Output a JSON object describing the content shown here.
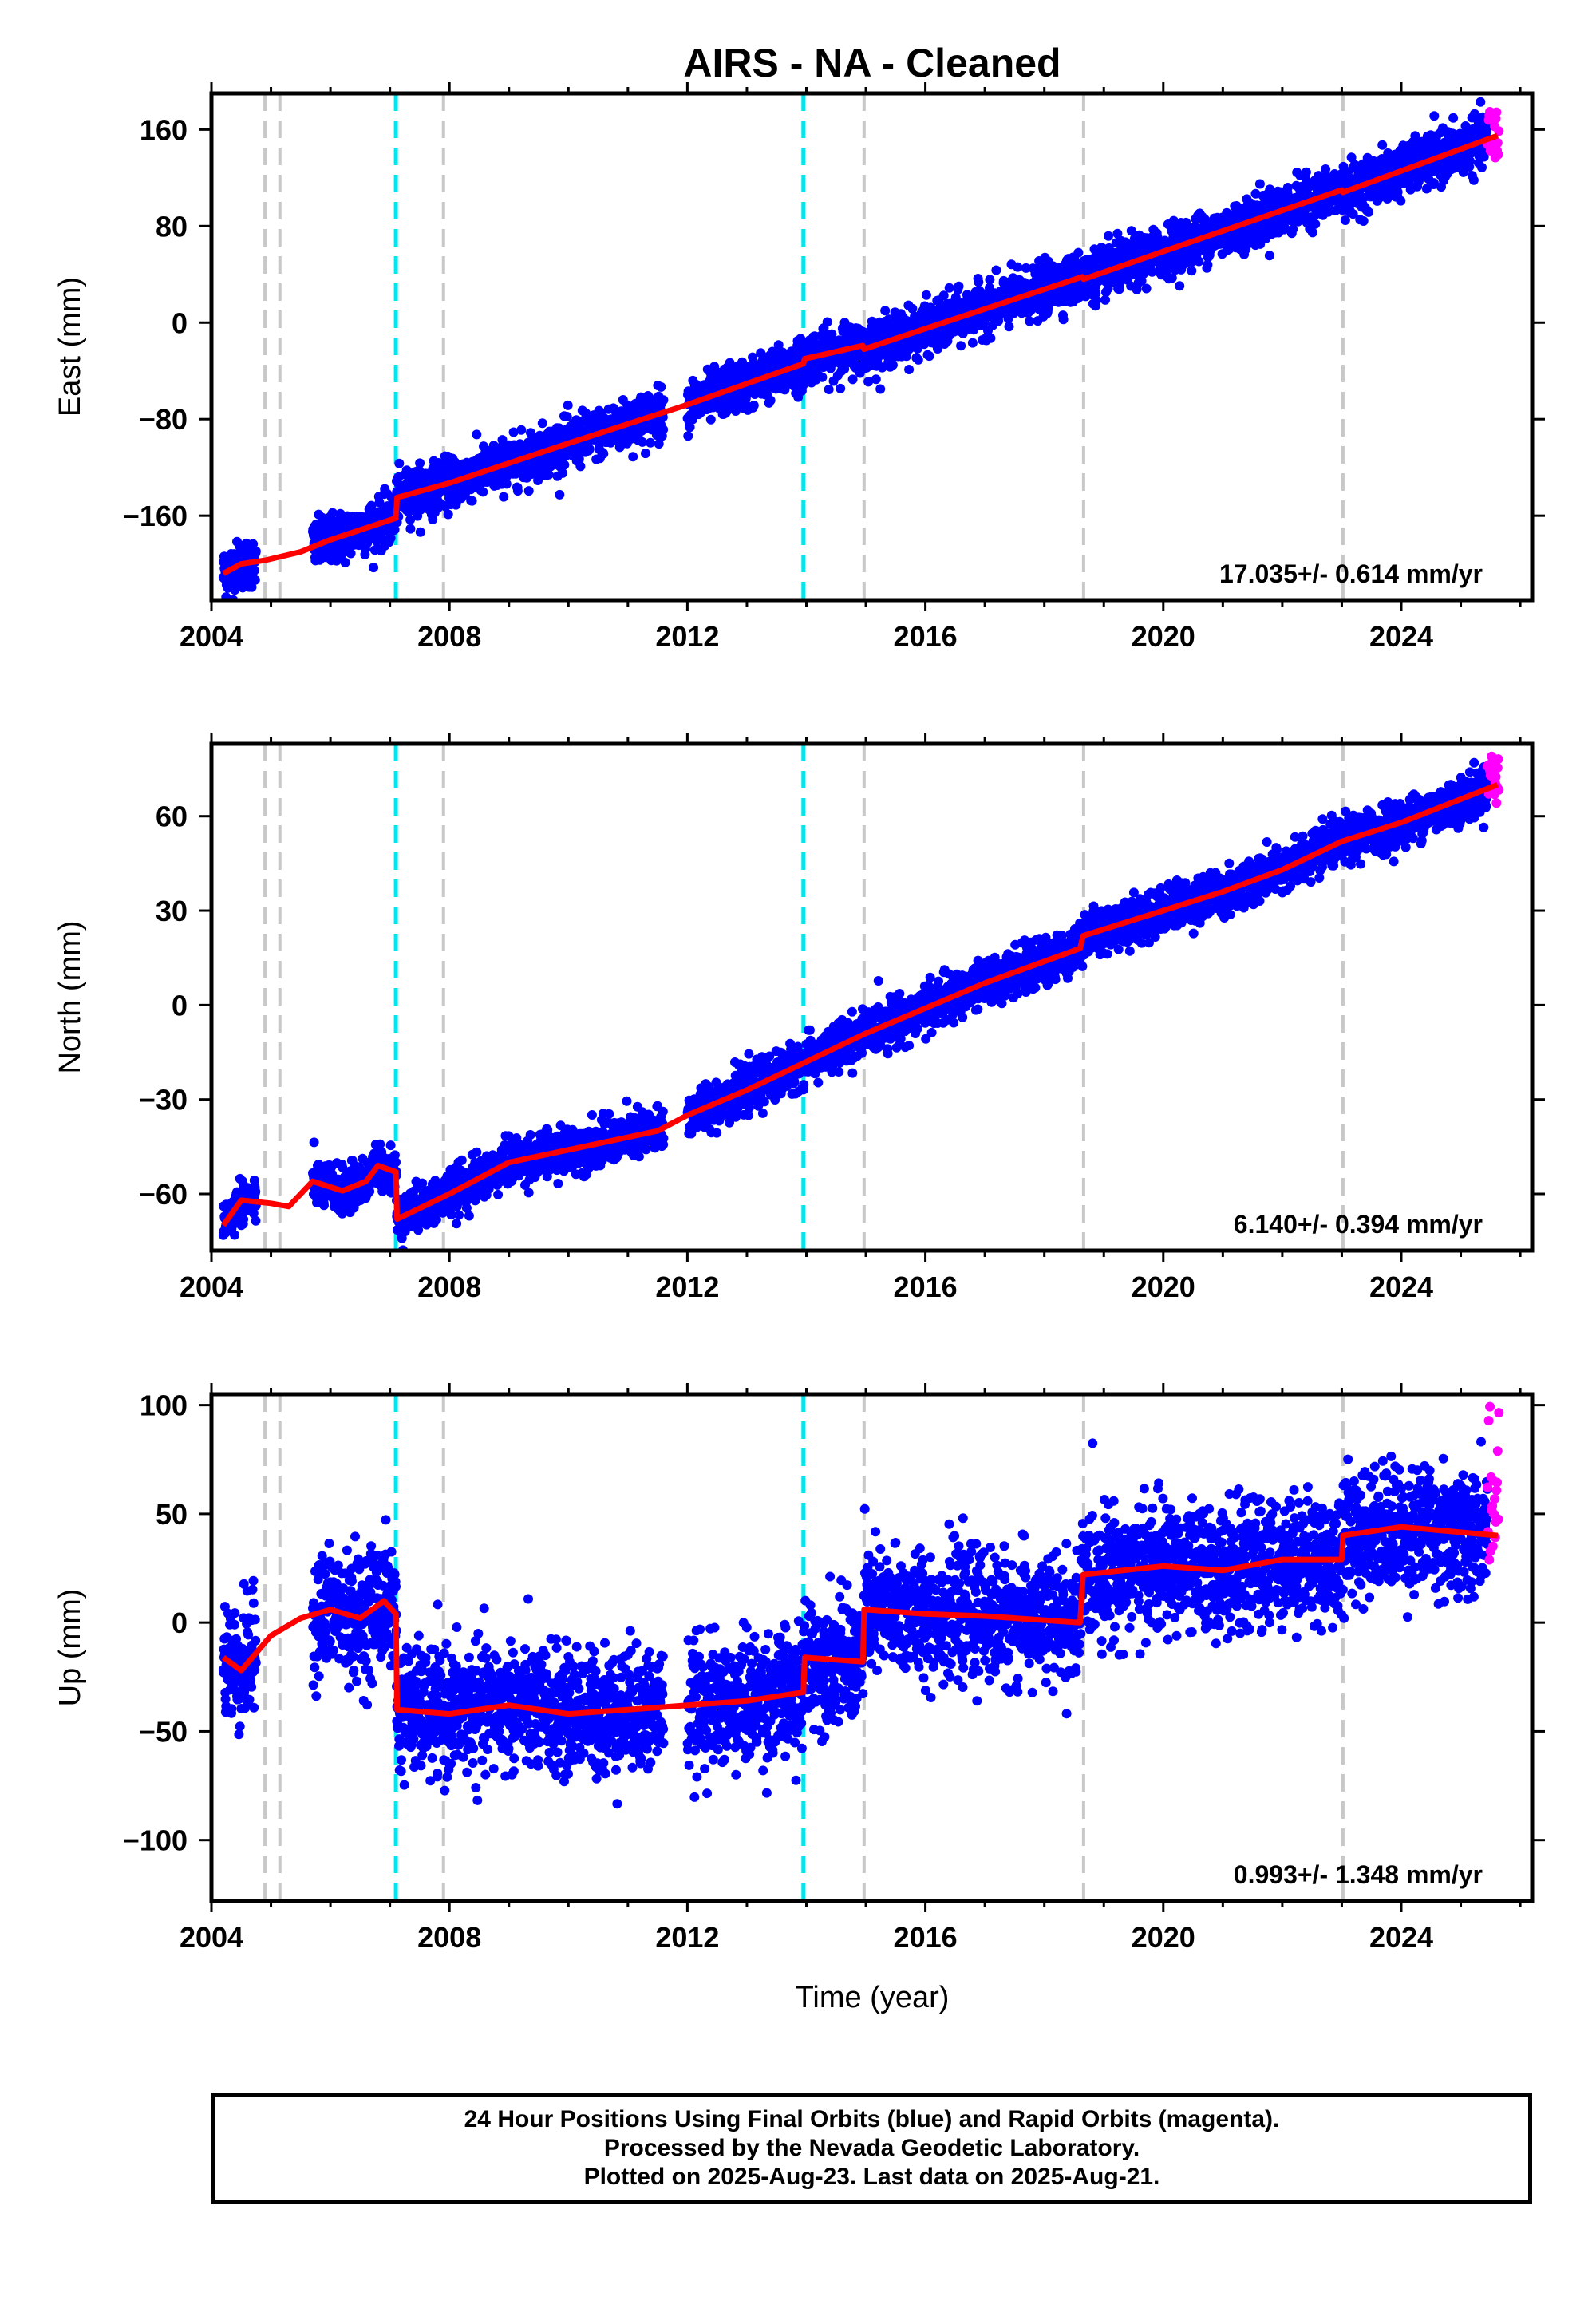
{
  "figure": {
    "title": "AIRS  - NA - Cleaned",
    "xlabel": "Time (year)"
  },
  "colors": {
    "final_orbits": "#0000ff",
    "rapid_orbits": "#ff00ff",
    "model": "#ff0000",
    "equipment_change": "#c8c8c8",
    "earthquake": "#00e5ee"
  },
  "chart_data": [
    {
      "type": "scatter",
      "component": "East",
      "ylabel": "East (mm)",
      "xlim": [
        2004.0,
        2026.2
      ],
      "ylim": [
        -230,
        190
      ],
      "xticks": [
        2004,
        2008,
        2012,
        2016,
        2020,
        2024
      ],
      "yticks": [
        -160,
        -80,
        0,
        80,
        160
      ],
      "ytick_labels": [
        "−160",
        "−80",
        "0",
        "80",
        "160"
      ],
      "rate_label": "17.035+/- 0.614 mm/yr",
      "model_points": [
        [
          2004.2,
          -208
        ],
        [
          2004.5,
          -200
        ],
        [
          2004.9,
          -197
        ],
        [
          2005.5,
          -190
        ],
        [
          2006.0,
          -180
        ],
        [
          2007.1,
          -162
        ],
        [
          2007.12,
          -145
        ],
        [
          2008.0,
          -133
        ],
        [
          2010.0,
          -100
        ],
        [
          2012.0,
          -68
        ],
        [
          2013.95,
          -34
        ],
        [
          2013.97,
          -30
        ],
        [
          2014.95,
          -19
        ],
        [
          2014.97,
          -22
        ],
        [
          2016.0,
          -5
        ],
        [
          2018.64,
          38
        ],
        [
          2018.66,
          36
        ],
        [
          2020.0,
          59
        ],
        [
          2023.0,
          110
        ],
        [
          2023.02,
          108
        ],
        [
          2025.62,
          155
        ]
      ],
      "final_scatter_sigma": 10,
      "rapid_range": [
        2025.45,
        2025.64
      ],
      "rapid_values": [
        136,
        176
      ]
    },
    {
      "type": "scatter",
      "component": "North",
      "ylabel": "North (mm)",
      "xlim": [
        2004.0,
        2026.2
      ],
      "ylim": [
        -78,
        83
      ],
      "xticks": [
        2004,
        2008,
        2012,
        2016,
        2020,
        2024
      ],
      "yticks": [
        -60,
        -30,
        0,
        30,
        60
      ],
      "ytick_labels": [
        "−60",
        "−30",
        "0",
        "30",
        "60"
      ],
      "rate_label": "6.140+/- 0.394 mm/yr",
      "model_points": [
        [
          2004.2,
          -70
        ],
        [
          2004.5,
          -62
        ],
        [
          2005.0,
          -63
        ],
        [
          2005.3,
          -64
        ],
        [
          2005.7,
          -56
        ],
        [
          2006.2,
          -59
        ],
        [
          2006.6,
          -56
        ],
        [
          2006.8,
          -51
        ],
        [
          2007.1,
          -53
        ],
        [
          2007.12,
          -68
        ],
        [
          2008.0,
          -60
        ],
        [
          2009.0,
          -50
        ],
        [
          2010.0,
          -46
        ],
        [
          2010.5,
          -44
        ],
        [
          2011.0,
          -42
        ],
        [
          2011.5,
          -40
        ],
        [
          2012.0,
          -35
        ],
        [
          2013.0,
          -27
        ],
        [
          2014.0,
          -18
        ],
        [
          2015.0,
          -9
        ],
        [
          2016.0,
          -1
        ],
        [
          2017.0,
          7
        ],
        [
          2018.6,
          18
        ],
        [
          2018.65,
          22
        ],
        [
          2020.0,
          30
        ],
        [
          2021.0,
          36
        ],
        [
          2022.0,
          43
        ],
        [
          2023.0,
          52
        ],
        [
          2024.0,
          58
        ],
        [
          2025.62,
          70
        ]
      ],
      "final_scatter_sigma": 3.5,
      "rapid_range": [
        2025.45,
        2025.64
      ],
      "rapid_values": [
        64,
        79
      ]
    },
    {
      "type": "scatter",
      "component": "Up",
      "ylabel": "Up (mm)",
      "xlim": [
        2004.0,
        2026.2
      ],
      "ylim": [
        -128,
        105
      ],
      "xticks": [
        2004,
        2008,
        2012,
        2016,
        2020,
        2024
      ],
      "yticks": [
        -100,
        -50,
        0,
        50,
        100
      ],
      "ytick_labels": [
        "−100",
        "−50",
        "0",
        "50",
        "100"
      ],
      "rate_label": "0.993+/- 1.348 mm/yr",
      "model_points": [
        [
          2004.2,
          -16
        ],
        [
          2004.5,
          -22
        ],
        [
          2005.0,
          -6
        ],
        [
          2005.5,
          2
        ],
        [
          2006.0,
          6
        ],
        [
          2006.5,
          2
        ],
        [
          2006.9,
          10
        ],
        [
          2007.1,
          4
        ],
        [
          2007.12,
          -40
        ],
        [
          2008.0,
          -42
        ],
        [
          2009.0,
          -38
        ],
        [
          2010.0,
          -42
        ],
        [
          2011.0,
          -40
        ],
        [
          2012.0,
          -38
        ],
        [
          2013.0,
          -36
        ],
        [
          2013.95,
          -32
        ],
        [
          2013.97,
          -16
        ],
        [
          2014.95,
          -18
        ],
        [
          2014.97,
          6
        ],
        [
          2016.0,
          4
        ],
        [
          2017.0,
          3
        ],
        [
          2018.6,
          0
        ],
        [
          2018.65,
          22
        ],
        [
          2020.0,
          26
        ],
        [
          2021.0,
          24
        ],
        [
          2022.0,
          29
        ],
        [
          2023.0,
          29
        ],
        [
          2023.02,
          40
        ],
        [
          2024.0,
          44
        ],
        [
          2025.62,
          40
        ]
      ],
      "final_scatter_sigma": 14,
      "rapid_range": [
        2025.45,
        2025.64
      ],
      "rapid_values": [
        22,
        100
      ]
    }
  ],
  "equipment_changes": [
    2004.9,
    2005.15,
    2007.9,
    2014.97,
    2018.66,
    2023.02
  ],
  "earthquakes": [
    2007.1,
    2013.95
  ],
  "footer": {
    "line1": "24 Hour Positions Using Final Orbits (blue) and Rapid Orbits (magenta).",
    "line2": "Processed by the Nevada Geodetic Laboratory.",
    "line3": "Plotted on 2025-Aug-23. Last data on 2025-Aug-21."
  }
}
